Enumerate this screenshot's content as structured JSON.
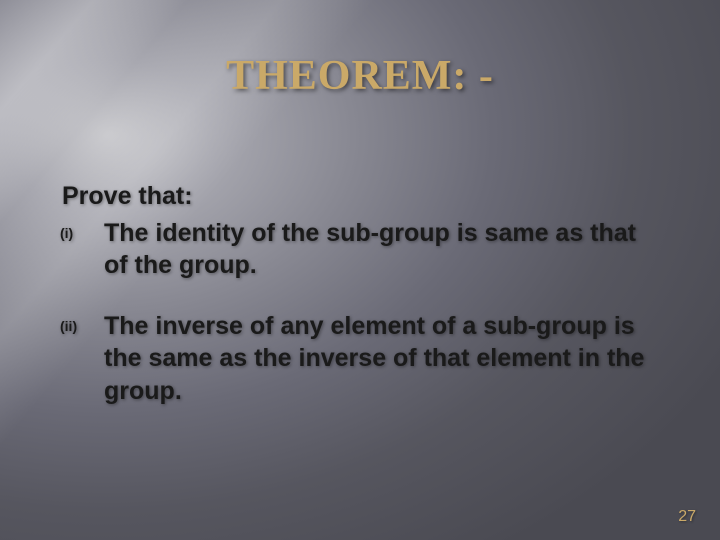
{
  "title": "THEOREM: -",
  "title_color": "#caa968",
  "body_color": "#1a1a1a",
  "pagenum_color": "#caa968",
  "prove_label": "Prove that:",
  "items": [
    {
      "marker": "(i)",
      "text": "The identity of the sub-group is same as that of the group."
    },
    {
      "marker": "(ii)",
      "text": "The inverse of any element of a sub-group is the same as the inverse of that element in the group."
    }
  ],
  "page_number": "27"
}
